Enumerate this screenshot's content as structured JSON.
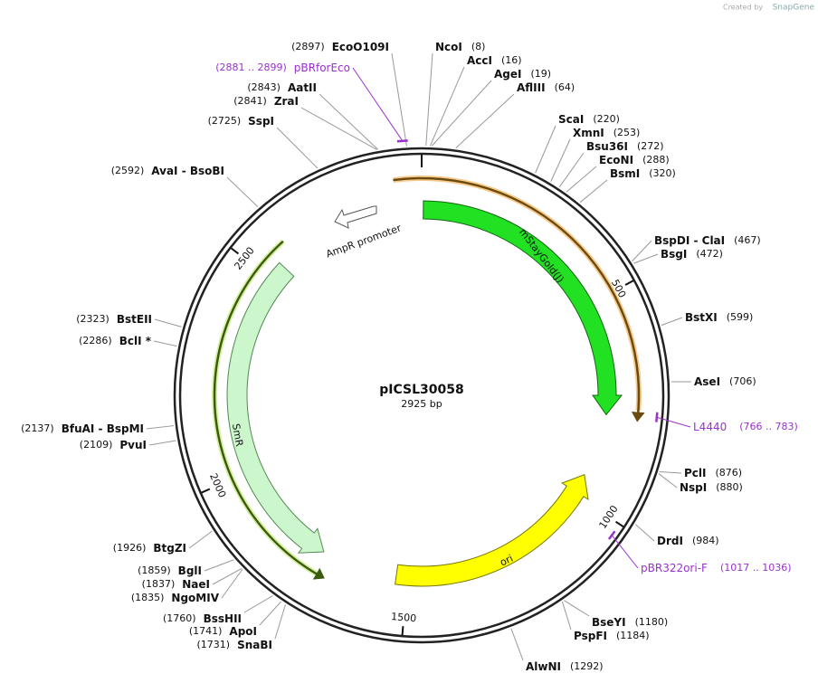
{
  "credit": {
    "prefix": "Created by",
    "brand": "SnapGene"
  },
  "plasmid": {
    "name": "pICSL30058",
    "length": "2925 bp"
  },
  "sites": [
    {
      "name": "NcoI",
      "position": "(8)"
    },
    {
      "name": "AccI",
      "position": "(16)"
    },
    {
      "name": "AgeI",
      "position": "(19)"
    },
    {
      "name": "AflIII",
      "position": "(64)"
    },
    {
      "name": "ScaI",
      "position": "(220)"
    },
    {
      "name": "XmnI",
      "position": "(253)"
    },
    {
      "name": "Bsu36I",
      "position": "(272)"
    },
    {
      "name": "EcoNI",
      "position": "(288)"
    },
    {
      "name": "BsmI",
      "position": "(320)"
    },
    {
      "name": "BspDI - ClaI",
      "position": "(467)"
    },
    {
      "name": "BsgI",
      "position": "(472)"
    },
    {
      "name": "BstXI",
      "position": "(599)"
    },
    {
      "name": "AseI",
      "position": "(706)"
    },
    {
      "name": "PclI",
      "position": "(876)"
    },
    {
      "name": "NspI",
      "position": "(880)"
    },
    {
      "name": "DrdI",
      "position": "(984)"
    },
    {
      "name": "BseYI",
      "position": "(1180)"
    },
    {
      "name": "PspFI",
      "position": "(1184)"
    },
    {
      "name": "AlwNI",
      "position": "(1292)"
    },
    {
      "name": "EcoO109I",
      "position": "(2897)"
    },
    {
      "name": "AatII",
      "position": "(2843)"
    },
    {
      "name": "ZraI",
      "position": "(2841)"
    },
    {
      "name": "SspI",
      "position": "(2725)"
    },
    {
      "name": "AvaI - BsoBI",
      "position": "(2592)"
    },
    {
      "name": "BstEII",
      "position": "(2323)"
    },
    {
      "name": "BclI *",
      "position": "(2286)"
    },
    {
      "name": "BfuAI - BspMI",
      "position": "(2137)"
    },
    {
      "name": "PvuI",
      "position": "(2109)"
    },
    {
      "name": "BtgZI",
      "position": "(1926)"
    },
    {
      "name": "BglI",
      "position": "(1859)"
    },
    {
      "name": "NaeI",
      "position": "(1837)"
    },
    {
      "name": "NgoMIV",
      "position": "(1835)"
    },
    {
      "name": "BssHII",
      "position": "(1760)"
    },
    {
      "name": "ApoI",
      "position": "(1741)"
    },
    {
      "name": "SnaBI",
      "position": "(1731)"
    }
  ],
  "primers": [
    {
      "name": "pBRforEco",
      "range": "(2881 .. 2899)"
    },
    {
      "name": "L4440",
      "range": "(766 .. 783)"
    },
    {
      "name": "pBR322ori-F",
      "range": "(1017 .. 1036)"
    }
  ],
  "features": [
    {
      "name": "mStayGold(J)"
    },
    {
      "name": "AmpR promoter"
    },
    {
      "name": "SmR"
    },
    {
      "name": "ori"
    }
  ],
  "ticks": [
    "500",
    "1000",
    "1500",
    "2000",
    "2500"
  ]
}
